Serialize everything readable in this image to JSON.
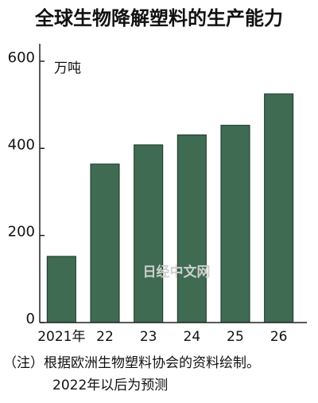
{
  "chart_data": {
    "type": "bar",
    "title": "全球生物降解塑料的生产能力",
    "unit": "万吨",
    "categories": [
      "2021年",
      "22",
      "23",
      "24",
      "25",
      "26"
    ],
    "values": [
      152,
      364,
      408,
      431,
      453,
      525
    ],
    "color": "#3e6b52",
    "ylim": [
      0,
      640
    ],
    "yticks": [
      0,
      200,
      400,
      600
    ],
    "grid": false,
    "watermark": "日经中文网",
    "notes": [
      "（注）根据欧洲生物塑料协会的资料绘制。",
      "2022年以后为预测"
    ]
  }
}
